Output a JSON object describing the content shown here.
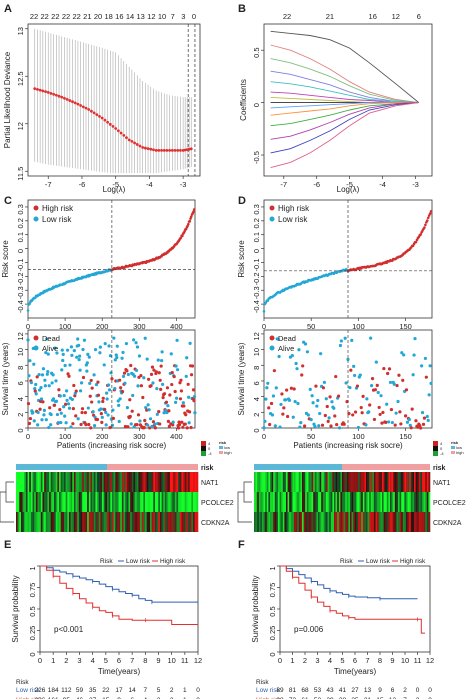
{
  "panel_letters": [
    "A",
    "B",
    "C",
    "D",
    "E",
    "F"
  ],
  "chart_data": [
    {
      "panel": "A",
      "type": "scatter",
      "xlabel": "Log(λ)",
      "ylabel": "Partial Likelihood Deviance",
      "xlim": [
        -7.6,
        -2.5
      ],
      "ylim": [
        11.45,
        13.05
      ],
      "x_ticks": [
        -7,
        -6,
        -5,
        -4,
        -3
      ],
      "y_ticks": [
        11.5,
        12.0,
        12.5,
        13.0
      ],
      "top_axis_labels": [
        "22",
        "22",
        "22",
        "22",
        "22",
        "21",
        "20",
        "18",
        "16",
        "14",
        "13",
        "12",
        "10",
        "7",
        "3",
        "0"
      ],
      "vlines": [
        -2.85,
        -2.65
      ],
      "series": [
        {
          "points": [
            [
              -7.4,
              12.37
            ],
            [
              -7.0,
              12.33
            ],
            [
              -6.6,
              12.28
            ],
            [
              -6.2,
              12.22
            ],
            [
              -5.8,
              12.15
            ],
            [
              -5.4,
              12.06
            ],
            [
              -5.0,
              11.95
            ],
            [
              -4.6,
              11.83
            ],
            [
              -4.2,
              11.75
            ],
            [
              -3.8,
              11.72
            ],
            [
              -3.4,
              11.72
            ],
            [
              -3.0,
              11.72
            ],
            [
              -2.7,
              11.74
            ]
          ],
          "error_upper": [
            13.0,
            12.96,
            12.92,
            12.88,
            12.84,
            12.8,
            12.75,
            12.6,
            12.45,
            12.35,
            12.3,
            12.28,
            12.28
          ],
          "error_lower": [
            11.6,
            11.57,
            11.55,
            11.53,
            11.51,
            11.49,
            11.48,
            11.48,
            11.48,
            11.48,
            11.5,
            11.52,
            11.55
          ]
        }
      ]
    },
    {
      "panel": "B",
      "type": "line",
      "xlabel": "Log(λ)",
      "ylabel": "Coefficients",
      "xlim": [
        -7.6,
        -2.5
      ],
      "ylim": [
        -0.7,
        0.75
      ],
      "x_ticks": [
        -7,
        -6,
        -5,
        -4,
        -3
      ],
      "y_ticks": [
        -0.5,
        0.0,
        0.5
      ],
      "top_axis_labels": [
        "22",
        "21",
        "16",
        "12",
        "6"
      ],
      "series": [
        {
          "color": "#555555",
          "values": [
            0.68,
            0.66,
            0.64,
            0.6,
            0.52,
            0.38,
            0.18,
            0.0
          ]
        },
        {
          "color": "#e08080",
          "values": [
            0.55,
            0.5,
            0.42,
            0.32,
            0.2,
            0.1,
            0.03,
            0.0
          ]
        },
        {
          "color": "#80c080",
          "values": [
            0.42,
            0.38,
            0.32,
            0.25,
            0.16,
            0.08,
            0.02,
            0.0
          ]
        },
        {
          "color": "#8080e0",
          "values": [
            0.3,
            0.27,
            0.22,
            0.17,
            0.1,
            0.05,
            0.01,
            0.0
          ]
        },
        {
          "color": "#40c0c0",
          "values": [
            0.2,
            0.18,
            0.15,
            0.11,
            0.07,
            0.03,
            0.01,
            0.0
          ]
        },
        {
          "color": "#c040c0",
          "values": [
            0.1,
            0.09,
            0.07,
            0.05,
            0.03,
            0.02,
            0.0,
            0.0
          ]
        },
        {
          "color": "#c0c040",
          "values": [
            0.05,
            0.04,
            0.03,
            0.02,
            0.01,
            0.0,
            0.0,
            0.0
          ]
        },
        {
          "color": "#303030",
          "values": [
            0.0,
            0.0,
            0.0,
            0.0,
            0.0,
            0.0,
            0.0,
            0.0
          ]
        },
        {
          "color": "#60a0ff",
          "values": [
            -0.05,
            -0.04,
            -0.03,
            -0.02,
            -0.01,
            0.0,
            0.0,
            0.0
          ]
        },
        {
          "color": "#ff9040",
          "values": [
            -0.12,
            -0.1,
            -0.08,
            -0.06,
            -0.03,
            -0.01,
            0.0,
            0.0
          ]
        },
        {
          "color": "#40b040",
          "values": [
            -0.22,
            -0.2,
            -0.16,
            -0.12,
            -0.07,
            -0.03,
            -0.01,
            0.0
          ]
        },
        {
          "color": "#b040b0",
          "values": [
            -0.35,
            -0.32,
            -0.26,
            -0.19,
            -0.11,
            -0.05,
            -0.01,
            0.0
          ]
        },
        {
          "color": "#4040c0",
          "values": [
            -0.48,
            -0.44,
            -0.36,
            -0.27,
            -0.16,
            -0.07,
            -0.02,
            0.0
          ]
        },
        {
          "color": "#e06090",
          "values": [
            -0.62,
            -0.57,
            -0.48,
            -0.36,
            -0.22,
            -0.1,
            -0.03,
            0.0
          ]
        }
      ],
      "x": [
        -7.4,
        -6.8,
        -6.2,
        -5.6,
        -5.0,
        -4.4,
        -3.6,
        -2.9
      ]
    },
    {
      "panel": "C",
      "type": "scatter",
      "ylabel": "Risk score",
      "xlim": [
        0,
        450
      ],
      "ylim": [
        -0.5,
        0.35
      ],
      "x_ticks": [
        0,
        100,
        200,
        300,
        400
      ],
      "y_ticks": [
        -0.4,
        -0.3,
        -0.2,
        -0.1,
        0.0,
        0.1,
        0.2,
        0.3
      ],
      "legend": [
        "High risk",
        "Low risk"
      ],
      "cutoff": {
        "x": 226,
        "y": -0.15
      }
    },
    {
      "panel": "D",
      "type": "scatter",
      "ylabel": "Risk score",
      "xlim": [
        0,
        178
      ],
      "ylim": [
        -0.5,
        0.35
      ],
      "x_ticks": [
        0,
        50,
        100,
        150
      ],
      "y_ticks": [
        -0.4,
        -0.3,
        -0.2,
        -0.1,
        0.0,
        0.1,
        0.2,
        0.3
      ],
      "legend": [
        "High risk",
        "Low risk"
      ],
      "cutoff": {
        "x": 89,
        "y": -0.16
      }
    },
    {
      "panel": "C",
      "type": "scatter",
      "xlabel": "Patients (increasing risk socre)",
      "ylabel": "Survival time (years)",
      "xlim": [
        0,
        450
      ],
      "ylim": [
        0,
        12.5
      ],
      "x_ticks": [
        0,
        100,
        200,
        300,
        400
      ],
      "y_ticks": [
        0,
        2,
        4,
        6,
        8,
        10,
        12
      ],
      "legend": [
        "Dead",
        "Alive"
      ],
      "cutoff_x": 226
    },
    {
      "panel": "D",
      "type": "scatter",
      "xlabel": "Patients (increasing risk socre)",
      "ylabel": "Survival time (years)",
      "xlim": [
        0,
        178
      ],
      "ylim": [
        0,
        12.5
      ],
      "x_ticks": [
        0,
        50,
        100,
        150
      ],
      "y_ticks": [
        0,
        2,
        4,
        6,
        8,
        10,
        12
      ],
      "legend": [
        "Dead",
        "Alive"
      ],
      "cutoff_x": 89
    },
    {
      "panel": "C",
      "type": "heatmap",
      "genes": [
        "NAT1",
        "PCOLCE2",
        "CDKN2A"
      ],
      "annotation_label": "risk",
      "legend_title": "risk",
      "legend_items": [
        "low",
        "high"
      ],
      "color_scale": [
        -4,
        0,
        4
      ]
    },
    {
      "panel": "D",
      "type": "heatmap",
      "genes": [
        "NAT1",
        "PCOLCE2",
        "CDKN2A"
      ],
      "annotation_label": "risk",
      "legend_title": "risk",
      "legend_items": [
        "low",
        "high"
      ],
      "color_scale": [
        -4,
        0,
        4
      ]
    },
    {
      "panel": "E",
      "type": "line",
      "xlabel": "Time(years)",
      "ylabel": "Survival probability",
      "xlim": [
        0,
        12
      ],
      "ylim": [
        0,
        1.0
      ],
      "x_ticks": [
        0,
        1,
        2,
        3,
        4,
        5,
        6,
        7,
        8,
        9,
        10,
        11,
        12
      ],
      "y_ticks": [
        0.0,
        0.25,
        0.5,
        0.75,
        1.0
      ],
      "legend_title": "Risk",
      "pvalue": "p<0.001",
      "series": [
        {
          "name": "Low risk",
          "color": "#2f5fb0",
          "steps": [
            [
              0,
              1.0
            ],
            [
              0.5,
              0.98
            ],
            [
              1,
              0.95
            ],
            [
              1.5,
              0.93
            ],
            [
              2,
              0.91
            ],
            [
              2.5,
              0.88
            ],
            [
              3,
              0.86
            ],
            [
              3.5,
              0.84
            ],
            [
              4,
              0.82
            ],
            [
              4.5,
              0.79
            ],
            [
              5,
              0.76
            ],
            [
              5.5,
              0.73
            ],
            [
              6,
              0.7
            ],
            [
              6.5,
              0.68
            ],
            [
              7,
              0.66
            ],
            [
              7.5,
              0.62
            ],
            [
              8,
              0.6
            ],
            [
              8.5,
              0.58
            ],
            [
              12,
              0.58
            ]
          ]
        },
        {
          "name": "High risk",
          "color": "#e0302f",
          "steps": [
            [
              0,
              1.0
            ],
            [
              0.5,
              0.95
            ],
            [
              1,
              0.88
            ],
            [
              1.5,
              0.8
            ],
            [
              2,
              0.74
            ],
            [
              2.5,
              0.68
            ],
            [
              3,
              0.62
            ],
            [
              3.5,
              0.57
            ],
            [
              4,
              0.52
            ],
            [
              4.5,
              0.48
            ],
            [
              5,
              0.46
            ],
            [
              5.5,
              0.42
            ],
            [
              6,
              0.38
            ],
            [
              7,
              0.37
            ],
            [
              8,
              0.37
            ],
            [
              10,
              0.32
            ],
            [
              12,
              0.32
            ]
          ]
        }
      ],
      "risk_table": {
        "header": "Risk",
        "rows": [
          {
            "label": "Low risk",
            "color": "#2f5fb0",
            "values": [
              "226",
              "184",
              "112",
              "59",
              "35",
              "22",
              "17",
              "14",
              "7",
              "5",
              "2",
              "1",
              "0"
            ]
          },
          {
            "label": "High risk",
            "color": "#e0302f",
            "values": [
              "226",
              "161",
              "95",
              "46",
              "27",
              "15",
              "9",
              "6",
              "4",
              "3",
              "2",
              "1",
              "0"
            ]
          }
        ]
      }
    },
    {
      "panel": "F",
      "type": "line",
      "xlabel": "Time(years)",
      "ylabel": "Survival probability",
      "xlim": [
        0,
        12
      ],
      "ylim": [
        0,
        1.0
      ],
      "x_ticks": [
        0,
        1,
        2,
        3,
        4,
        5,
        6,
        7,
        8,
        9,
        10,
        11,
        12
      ],
      "y_ticks": [
        0.0,
        0.25,
        0.5,
        0.75,
        1.0
      ],
      "legend_title": "Risk",
      "pvalue": "p=0.006",
      "series": [
        {
          "name": "Low risk",
          "color": "#2f5fb0",
          "steps": [
            [
              0,
              1.0
            ],
            [
              0.5,
              0.97
            ],
            [
              1,
              0.94
            ],
            [
              1.5,
              0.9
            ],
            [
              2,
              0.86
            ],
            [
              2.5,
              0.82
            ],
            [
              3,
              0.78
            ],
            [
              3.5,
              0.74
            ],
            [
              4,
              0.71
            ],
            [
              4.5,
              0.69
            ],
            [
              5,
              0.67
            ],
            [
              5.5,
              0.65
            ],
            [
              6,
              0.64
            ],
            [
              7,
              0.63
            ],
            [
              8,
              0.62
            ],
            [
              11,
              0.62
            ]
          ]
        },
        {
          "name": "High risk",
          "color": "#e0302f",
          "steps": [
            [
              0,
              1.0
            ],
            [
              0.5,
              0.94
            ],
            [
              1,
              0.87
            ],
            [
              1.5,
              0.8
            ],
            [
              2,
              0.72
            ],
            [
              2.5,
              0.64
            ],
            [
              3,
              0.58
            ],
            [
              3.5,
              0.53
            ],
            [
              4,
              0.48
            ],
            [
              4.5,
              0.45
            ],
            [
              5,
              0.42
            ],
            [
              5.5,
              0.4
            ],
            [
              6,
              0.38
            ],
            [
              9,
              0.38
            ],
            [
              11,
              0.38
            ],
            [
              11.3,
              0.22
            ],
            [
              11.6,
              0.22
            ]
          ]
        }
      ],
      "risk_table": {
        "header": "Risk",
        "rows": [
          {
            "label": "Low risk",
            "color": "#2f5fb0",
            "values": [
              "89",
              "81",
              "68",
              "53",
              "43",
              "41",
              "27",
              "13",
              "9",
              "6",
              "2",
              "0",
              "0"
            ]
          },
          {
            "label": "High risk",
            "color": "#e0302f",
            "values": [
              "88",
              "72",
              "61",
              "53",
              "29",
              "28",
              "25",
              "21",
              "15",
              "12",
              "7",
              "2",
              "0"
            ]
          }
        ]
      }
    }
  ]
}
